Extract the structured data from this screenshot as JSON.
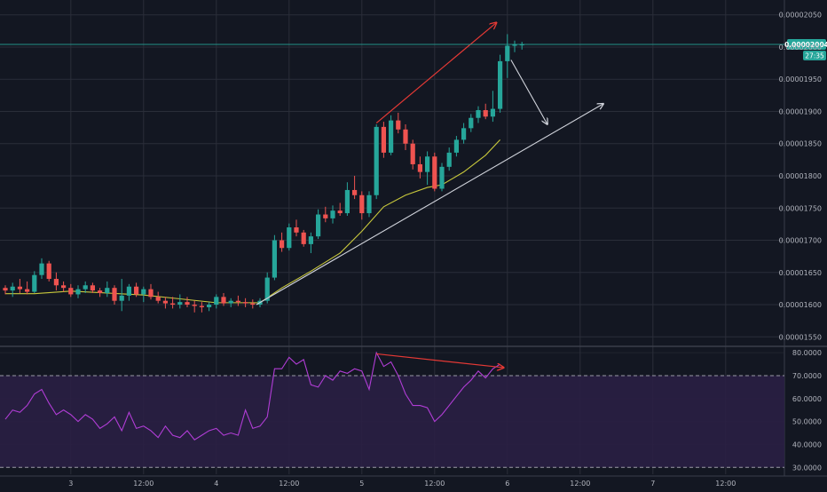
{
  "colors": {
    "background": "#131722",
    "grid": "#2a2e39",
    "axis_text": "#b2b5be",
    "candle_up": "#26a69a",
    "candle_down": "#ef5350",
    "ma": "#c8c83c",
    "rsi": "#b13dd6",
    "rsi_band": "#2a1f44",
    "trend_line": "#d1d4dc",
    "divergence": "#e53935",
    "price_tag": "#26a69a"
  },
  "chart_data": [
    {
      "type": "candlestick",
      "title": "",
      "y_axis": {
        "ticks": [
          "0.00001550",
          "0.00001600",
          "0.00001650",
          "0.00001700",
          "0.00001750",
          "0.00001800",
          "0.00001850",
          "0.00001900",
          "0.00001950",
          "0.00002000",
          "0.00002050"
        ],
        "range": [
          1.538e-05,
          2.062e-05
        ]
      },
      "x_axis": {
        "labels": [
          "3",
          "12:00",
          "4",
          "12:00",
          "5",
          "12:00",
          "6",
          "12:00",
          "7",
          "12:00"
        ],
        "bar_positions": [
          9,
          19,
          29,
          39,
          49,
          59,
          69,
          79,
          89,
          99
        ]
      },
      "last_price_label": "0.00002004",
      "countdown_label": "27:35",
      "last_price": 2.004e-05,
      "bar_count": 72,
      "candles_ohlc_e8": [
        [
          1626,
          1630,
          1616,
          1622
        ],
        [
          1622,
          1634,
          1612,
          1628
        ],
        [
          1628,
          1640,
          1618,
          1624
        ],
        [
          1624,
          1636,
          1616,
          1620
        ],
        [
          1620,
          1652,
          1618,
          1646
        ],
        [
          1646,
          1672,
          1640,
          1664
        ],
        [
          1664,
          1668,
          1636,
          1640
        ],
        [
          1640,
          1650,
          1622,
          1630
        ],
        [
          1630,
          1636,
          1620,
          1626
        ],
        [
          1626,
          1632,
          1612,
          1616
        ],
        [
          1616,
          1630,
          1610,
          1624
        ],
        [
          1624,
          1636,
          1618,
          1630
        ],
        [
          1630,
          1634,
          1618,
          1622
        ],
        [
          1622,
          1626,
          1612,
          1618
        ],
        [
          1618,
          1636,
          1612,
          1626
        ],
        [
          1626,
          1630,
          1600,
          1606
        ],
        [
          1606,
          1640,
          1590,
          1614
        ],
        [
          1614,
          1632,
          1606,
          1628
        ],
        [
          1628,
          1634,
          1612,
          1616
        ],
        [
          1616,
          1628,
          1604,
          1624
        ],
        [
          1624,
          1632,
          1608,
          1612
        ],
        [
          1612,
          1620,
          1602,
          1606
        ],
        [
          1606,
          1612,
          1594,
          1602
        ],
        [
          1602,
          1612,
          1594,
          1600
        ],
        [
          1600,
          1616,
          1594,
          1604
        ],
        [
          1604,
          1612,
          1596,
          1600
        ],
        [
          1600,
          1606,
          1588,
          1598
        ],
        [
          1598,
          1604,
          1588,
          1596
        ],
        [
          1596,
          1604,
          1590,
          1600
        ],
        [
          1600,
          1616,
          1594,
          1612
        ],
        [
          1612,
          1618,
          1598,
          1602
        ],
        [
          1602,
          1610,
          1596,
          1606
        ],
        [
          1606,
          1614,
          1598,
          1604
        ],
        [
          1604,
          1610,
          1596,
          1602
        ],
        [
          1602,
          1608,
          1594,
          1600
        ],
        [
          1600,
          1610,
          1596,
          1606
        ],
        [
          1606,
          1650,
          1602,
          1642
        ],
        [
          1642,
          1708,
          1638,
          1700
        ],
        [
          1700,
          1712,
          1682,
          1688
        ],
        [
          1688,
          1726,
          1684,
          1720
        ],
        [
          1720,
          1732,
          1706,
          1712
        ],
        [
          1712,
          1716,
          1690,
          1694
        ],
        [
          1694,
          1712,
          1680,
          1706
        ],
        [
          1706,
          1748,
          1702,
          1740
        ],
        [
          1740,
          1752,
          1728,
          1734
        ],
        [
          1734,
          1754,
          1726,
          1746
        ],
        [
          1746,
          1758,
          1738,
          1742
        ],
        [
          1742,
          1790,
          1738,
          1778
        ],
        [
          1778,
          1800,
          1764,
          1770
        ],
        [
          1770,
          1776,
          1732,
          1742
        ],
        [
          1742,
          1776,
          1736,
          1770
        ],
        [
          1770,
          1880,
          1764,
          1876
        ],
        [
          1876,
          1884,
          1828,
          1836
        ],
        [
          1836,
          1894,
          1832,
          1886
        ],
        [
          1886,
          1898,
          1866,
          1872
        ],
        [
          1872,
          1880,
          1840,
          1850
        ],
        [
          1850,
          1856,
          1810,
          1818
        ],
        [
          1818,
          1830,
          1796,
          1806
        ],
        [
          1806,
          1838,
          1786,
          1830
        ],
        [
          1830,
          1836,
          1776,
          1780
        ],
        [
          1780,
          1820,
          1776,
          1814
        ],
        [
          1814,
          1844,
          1808,
          1836
        ],
        [
          1836,
          1862,
          1830,
          1856
        ],
        [
          1856,
          1882,
          1850,
          1874
        ],
        [
          1874,
          1896,
          1868,
          1890
        ],
        [
          1890,
          1908,
          1882,
          1902
        ],
        [
          1902,
          1912,
          1888,
          1892
        ],
        [
          1892,
          1932,
          1884,
          1904
        ],
        [
          1904,
          1988,
          1898,
          1978
        ],
        [
          1978,
          2020,
          1952,
          2002
        ],
        [
          2002,
          2010,
          1992,
          2004
        ],
        [
          2004,
          2008,
          1996,
          2004
        ]
      ],
      "moving_average_e8": [
        [
          0,
          1617
        ],
        [
          4,
          1617
        ],
        [
          9,
          1621
        ],
        [
          14,
          1618
        ],
        [
          19,
          1615
        ],
        [
          24,
          1609
        ],
        [
          29,
          1603
        ],
        [
          35,
          1603
        ],
        [
          38,
          1626
        ],
        [
          42,
          1652
        ],
        [
          46,
          1680
        ],
        [
          49,
          1714
        ],
        [
          52,
          1752
        ],
        [
          55,
          1770
        ],
        [
          58,
          1782
        ],
        [
          60,
          1786
        ],
        [
          63,
          1806
        ],
        [
          66,
          1832
        ],
        [
          68,
          1856
        ]
      ]
    },
    {
      "type": "line",
      "title": "",
      "y_axis": {
        "ticks": [
          "30.0000",
          "40.0000",
          "50.0000",
          "60.0000",
          "70.0000",
          "80.0000"
        ],
        "range": [
          27,
          82
        ],
        "band": [
          30,
          70
        ]
      },
      "rsi_points": [
        [
          0,
          51
        ],
        [
          1,
          55
        ],
        [
          2,
          54
        ],
        [
          3,
          57
        ],
        [
          4,
          62
        ],
        [
          5,
          64
        ],
        [
          6,
          58
        ],
        [
          7,
          53
        ],
        [
          8,
          55
        ],
        [
          9,
          53
        ],
        [
          10,
          50
        ],
        [
          11,
          53
        ],
        [
          12,
          51
        ],
        [
          13,
          47
        ],
        [
          14,
          49
        ],
        [
          15,
          52
        ],
        [
          16,
          46
        ],
        [
          17,
          54
        ],
        [
          18,
          47
        ],
        [
          19,
          48
        ],
        [
          20,
          46
        ],
        [
          21,
          43
        ],
        [
          22,
          48
        ],
        [
          23,
          44
        ],
        [
          24,
          43
        ],
        [
          25,
          46
        ],
        [
          26,
          42
        ],
        [
          27,
          44
        ],
        [
          28,
          46
        ],
        [
          29,
          47
        ],
        [
          30,
          44
        ],
        [
          31,
          45
        ],
        [
          32,
          44
        ],
        [
          33,
          55
        ],
        [
          34,
          47
        ],
        [
          35,
          48
        ],
        [
          36,
          52
        ],
        [
          37,
          73
        ],
        [
          38,
          73
        ],
        [
          39,
          78
        ],
        [
          40,
          75
        ],
        [
          41,
          77
        ],
        [
          42,
          66
        ],
        [
          43,
          65
        ],
        [
          44,
          70
        ],
        [
          45,
          68
        ],
        [
          46,
          72
        ],
        [
          47,
          71
        ],
        [
          48,
          73
        ],
        [
          49,
          72
        ],
        [
          50,
          64
        ],
        [
          51,
          80
        ],
        [
          52,
          74
        ],
        [
          53,
          76
        ],
        [
          54,
          70
        ],
        [
          55,
          62
        ],
        [
          56,
          57
        ],
        [
          57,
          57
        ],
        [
          58,
          56
        ],
        [
          59,
          50
        ],
        [
          60,
          53
        ],
        [
          61,
          57
        ],
        [
          62,
          61
        ],
        [
          63,
          65
        ],
        [
          64,
          68
        ],
        [
          65,
          72
        ],
        [
          66,
          69
        ],
        [
          67,
          73
        ],
        [
          68,
          75
        ]
      ]
    }
  ]
}
